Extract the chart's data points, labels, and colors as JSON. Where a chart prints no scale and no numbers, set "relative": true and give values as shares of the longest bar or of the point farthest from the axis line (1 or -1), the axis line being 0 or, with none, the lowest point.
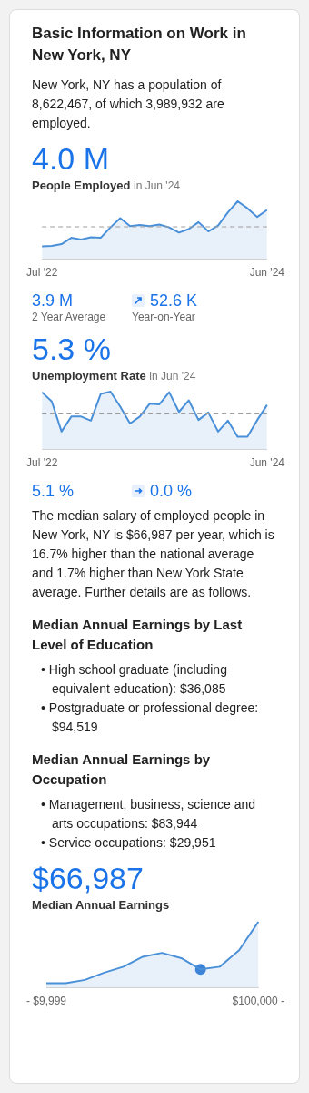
{
  "chart_data": [
    {
      "type": "other",
      "title": "Basic Information on Work in New York, NY",
      "annotations": [
        "New York, NY has a population of 8,622,467, of which 3,989,932 are employed."
      ]
    },
    {
      "type": "area",
      "title": "People Employed",
      "subtitle": "in Jun '24",
      "relative": true,
      "categories": [
        "Jul '22",
        null,
        null,
        null,
        null,
        null,
        null,
        null,
        null,
        null,
        null,
        null,
        null,
        null,
        null,
        null,
        null,
        null,
        null,
        null,
        null,
        null,
        null,
        "Jun '24"
      ],
      "series": [
        {
          "color": "#4a90d9",
          "values": [
            0.22,
            0.23,
            0.26,
            0.37,
            0.34,
            0.38,
            0.37,
            0.55,
            0.71,
            0.57,
            0.59,
            0.57,
            0.6,
            0.55,
            0.46,
            0.52,
            0.64,
            0.48,
            0.58,
            0.81,
            1,
            0.88,
            0.73,
            0.85
          ]
        }
      ],
      "ref_lines": [
        {
          "axis": "y",
          "value": 0.56,
          "line_style": "dashed",
          "color": "#9e9e9e"
        }
      ],
      "annotations": [
        "4.0 M",
        "3.9 M",
        "2 Year Average",
        "52.6 K",
        "Year-on-Year"
      ]
    },
    {
      "type": "area",
      "title": "Unemployment Rate",
      "subtitle": "in Jun '24",
      "relative": true,
      "categories": [
        "Jul '22",
        null,
        null,
        null,
        null,
        null,
        null,
        null,
        null,
        null,
        null,
        null,
        null,
        null,
        null,
        null,
        null,
        null,
        null,
        null,
        null,
        null,
        null,
        "Jun '24"
      ],
      "series": [
        {
          "color": "#4a90d9",
          "values": [
            0.99,
            0.83,
            0.31,
            0.57,
            0.57,
            0.5,
            0.96,
            1,
            0.74,
            0.45,
            0.57,
            0.79,
            0.78,
            0.99,
            0.65,
            0.85,
            0.51,
            0.64,
            0.31,
            0.5,
            0.22,
            0.22,
            0.51,
            0.77
          ]
        }
      ],
      "ref_lines": [
        {
          "axis": "y",
          "value": 0.63,
          "line_style": "dashed",
          "color": "#9e9e9e"
        }
      ],
      "annotations": [
        "5.3 %",
        "5.1 %",
        "0.0 %"
      ]
    },
    {
      "type": "other",
      "annotations": [
        "The median salary of employed people in New York, NY is $66,987 per year, which is 16.7% higher than the national average and 1.7% higher than New York State average. Further details are as follows."
      ]
    },
    {
      "type": "other",
      "title": "Median Annual Earnings by Last Level of Education",
      "annotations": [
        "• High school graduate (including equivalent education): $36,085",
        "• Postgraduate or professional degree: $94,519"
      ]
    },
    {
      "type": "other",
      "title": "Median Annual Earnings by Occupation",
      "annotations": [
        "• Management, business, science and arts occupations: $83,944",
        "• Service occupations: $29,951"
      ]
    },
    {
      "type": "area",
      "title": "Median Annual Earnings",
      "relative": true,
      "categories": [
        "- $9,999",
        null,
        null,
        null,
        null,
        null,
        null,
        null,
        null,
        null,
        null,
        "$100,000 -"
      ],
      "series": [
        {
          "color": "#4a90d9",
          "values": [
            0.07,
            0.07,
            0.12,
            0.23,
            0.32,
            0.47,
            0.53,
            0.45,
            0.28,
            0.32,
            0.57,
            1
          ]
        },
        {
          "type": "scatter",
          "marker": "circle",
          "color": "#3b82d6",
          "values": [
            null,
            null,
            null,
            null,
            null,
            null,
            null,
            null,
            0.28,
            null,
            null,
            null
          ]
        }
      ],
      "annotations": [
        "$66,987"
      ]
    }
  ]
}
